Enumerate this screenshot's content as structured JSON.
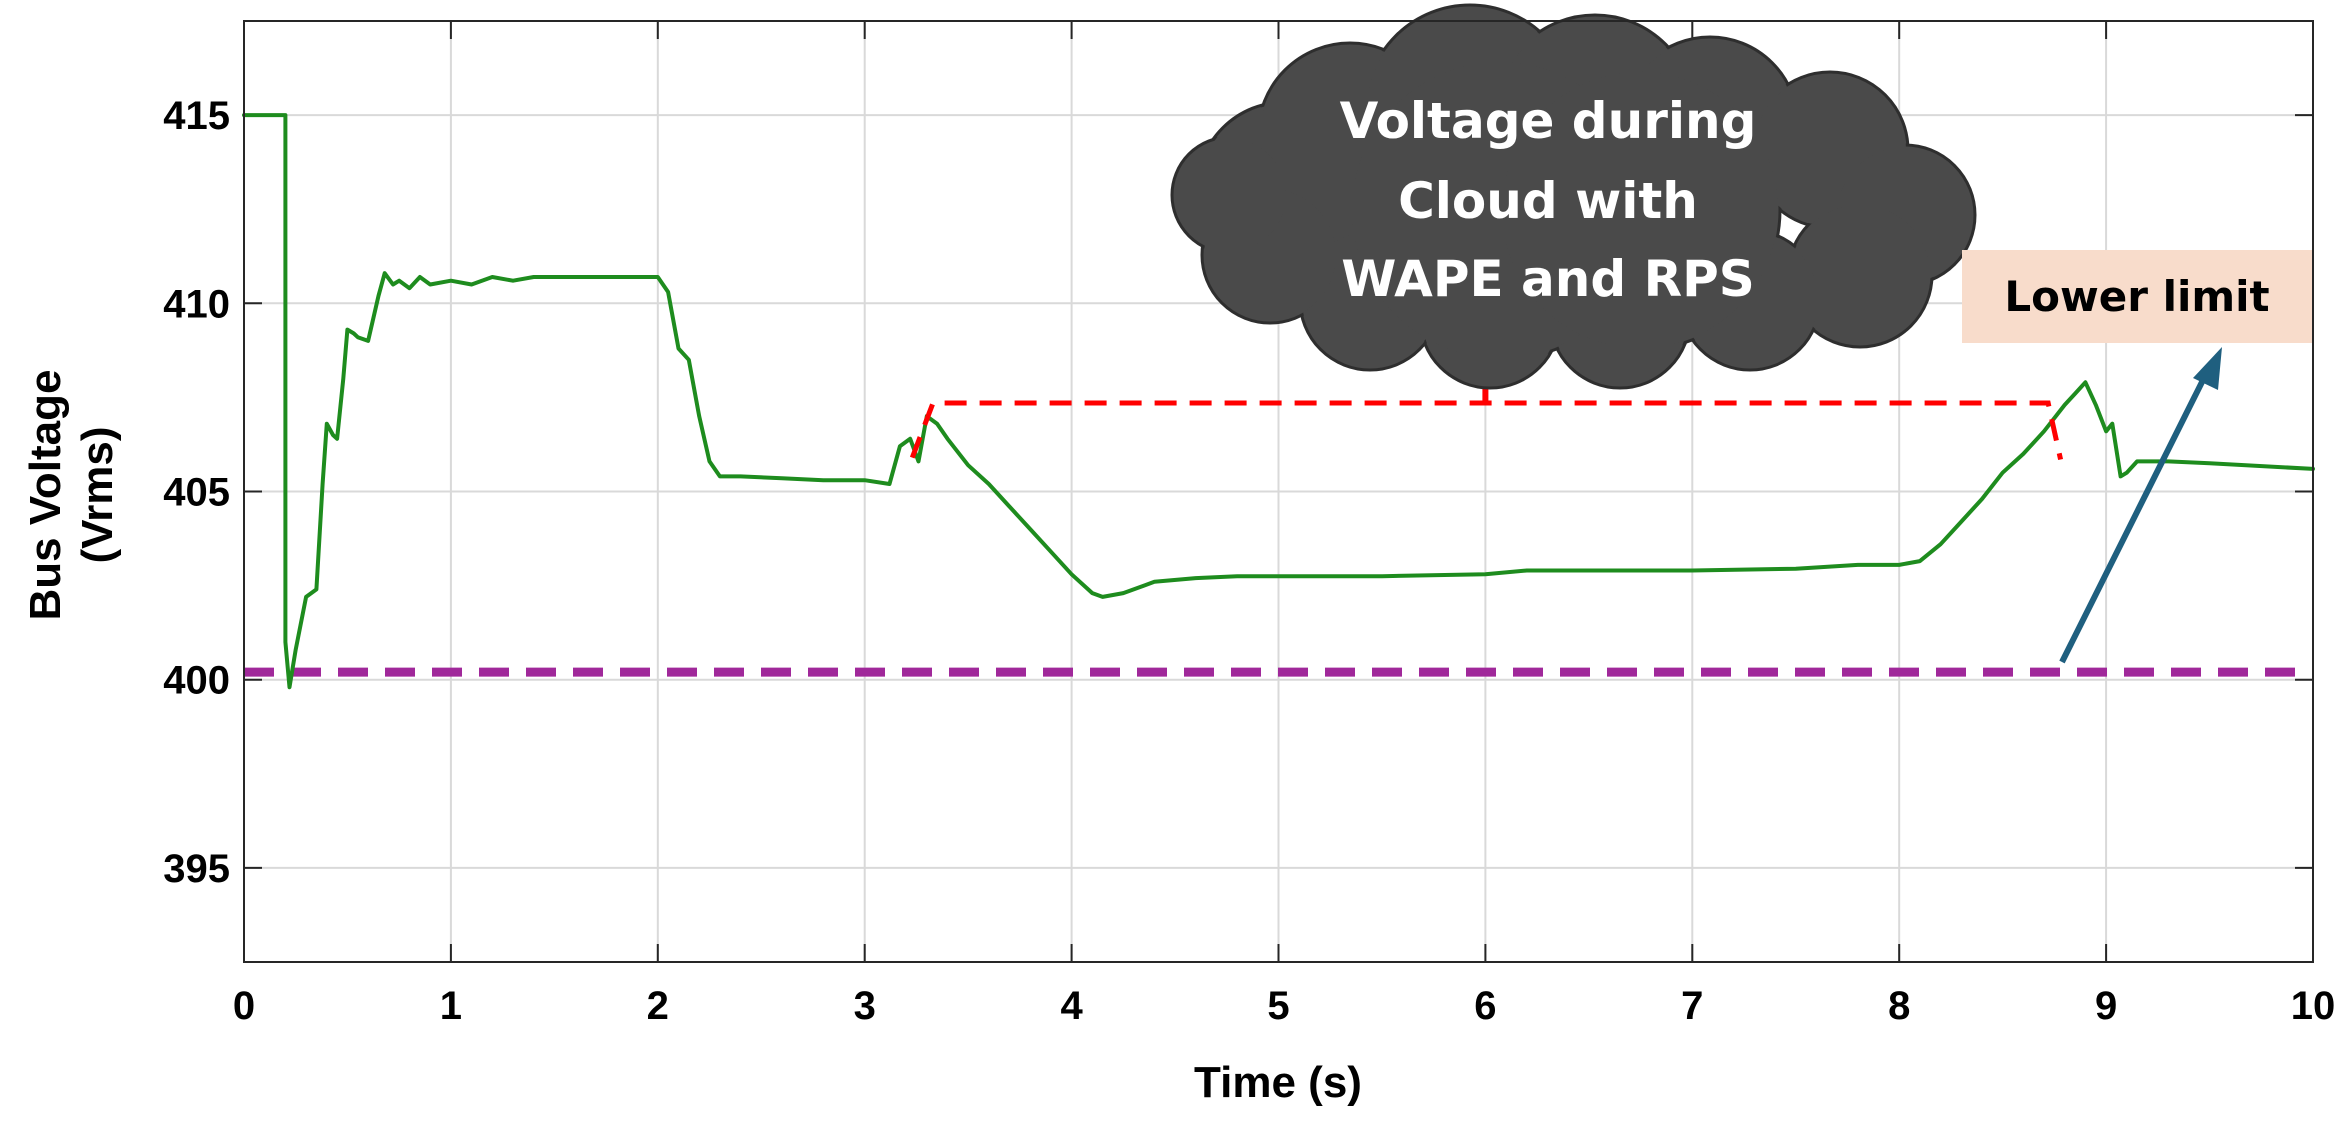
{
  "chart_data": {
    "type": "line",
    "xlabel": "Time (s)",
    "ylabel_lines": [
      "Bus Voltage",
      "(Vrms)"
    ],
    "xlim": [
      0,
      10
    ],
    "ylim": [
      392.5,
      417.5
    ],
    "x_ticks": [
      0,
      1,
      2,
      3,
      4,
      5,
      6,
      7,
      8,
      9,
      10
    ],
    "y_ticks": [
      395,
      400,
      405,
      410,
      415
    ],
    "grid": true,
    "series": [
      {
        "color": "#1e8c1e",
        "points": [
          [
            0,
            415
          ],
          [
            0.2,
            415
          ],
          [
            0.2,
            401
          ],
          [
            0.22,
            399.8
          ],
          [
            0.25,
            400.8
          ],
          [
            0.3,
            402.2
          ],
          [
            0.35,
            402.4
          ],
          [
            0.38,
            405.2
          ],
          [
            0.4,
            406.8
          ],
          [
            0.43,
            406.5
          ],
          [
            0.45,
            406.4
          ],
          [
            0.48,
            408.0
          ],
          [
            0.5,
            409.3
          ],
          [
            0.53,
            409.2
          ],
          [
            0.55,
            409.1
          ],
          [
            0.6,
            409.0
          ],
          [
            0.65,
            410.2
          ],
          [
            0.68,
            410.8
          ],
          [
            0.72,
            410.5
          ],
          [
            0.75,
            410.6
          ],
          [
            0.8,
            410.4
          ],
          [
            0.85,
            410.7
          ],
          [
            0.9,
            410.5
          ],
          [
            1.0,
            410.6
          ],
          [
            1.1,
            410.5
          ],
          [
            1.2,
            410.7
          ],
          [
            1.3,
            410.6
          ],
          [
            1.4,
            410.7
          ],
          [
            1.6,
            410.7
          ],
          [
            1.8,
            410.7
          ],
          [
            2.0,
            410.7
          ],
          [
            2.05,
            410.3
          ],
          [
            2.1,
            408.8
          ],
          [
            2.15,
            408.5
          ],
          [
            2.2,
            407.0
          ],
          [
            2.25,
            405.8
          ],
          [
            2.3,
            405.4
          ],
          [
            2.4,
            405.4
          ],
          [
            2.6,
            405.35
          ],
          [
            2.8,
            405.3
          ],
          [
            3.0,
            405.3
          ],
          [
            3.12,
            405.2
          ],
          [
            3.17,
            406.2
          ],
          [
            3.22,
            406.4
          ],
          [
            3.26,
            405.8
          ],
          [
            3.3,
            407.0
          ],
          [
            3.35,
            406.8
          ],
          [
            3.4,
            406.4
          ],
          [
            3.5,
            405.7
          ],
          [
            3.6,
            405.2
          ],
          [
            3.7,
            404.6
          ],
          [
            3.8,
            404.0
          ],
          [
            3.9,
            403.4
          ],
          [
            4.0,
            402.8
          ],
          [
            4.1,
            402.3
          ],
          [
            4.15,
            402.2
          ],
          [
            4.25,
            402.3
          ],
          [
            4.4,
            402.6
          ],
          [
            4.6,
            402.7
          ],
          [
            4.8,
            402.75
          ],
          [
            5.0,
            402.75
          ],
          [
            5.5,
            402.75
          ],
          [
            6.0,
            402.8
          ],
          [
            6.2,
            402.9
          ],
          [
            6.5,
            402.9
          ],
          [
            7.0,
            402.9
          ],
          [
            7.5,
            402.95
          ],
          [
            7.8,
            403.05
          ],
          [
            8.0,
            403.05
          ],
          [
            8.1,
            403.15
          ],
          [
            8.2,
            403.6
          ],
          [
            8.3,
            404.2
          ],
          [
            8.4,
            404.8
          ],
          [
            8.5,
            405.5
          ],
          [
            8.6,
            406.0
          ],
          [
            8.7,
            406.6
          ],
          [
            8.8,
            407.3
          ],
          [
            8.85,
            407.6
          ],
          [
            8.9,
            407.9
          ],
          [
            8.95,
            407.3
          ],
          [
            9.0,
            406.6
          ],
          [
            9.03,
            406.8
          ],
          [
            9.07,
            405.4
          ],
          [
            9.1,
            405.5
          ],
          [
            9.15,
            405.8
          ],
          [
            9.3,
            405.8
          ],
          [
            9.5,
            405.75
          ],
          [
            10.0,
            405.6
          ]
        ]
      },
      {
        "color": "#a0289a",
        "dashed": true,
        "points": [
          [
            0,
            400.2
          ],
          [
            10,
            400.2
          ]
        ]
      }
    ],
    "annotations": {
      "cloud": {
        "text_lines": [
          "Voltage during",
          "Cloud with",
          "WAPE and RPS"
        ],
        "fill": "#4a4a4a"
      },
      "lower_limit": {
        "text": "Lower limit",
        "box_fill": "#f8dccb",
        "arrow_color": "#1f5f7f"
      },
      "bracket_color": "#ff0000"
    }
  }
}
